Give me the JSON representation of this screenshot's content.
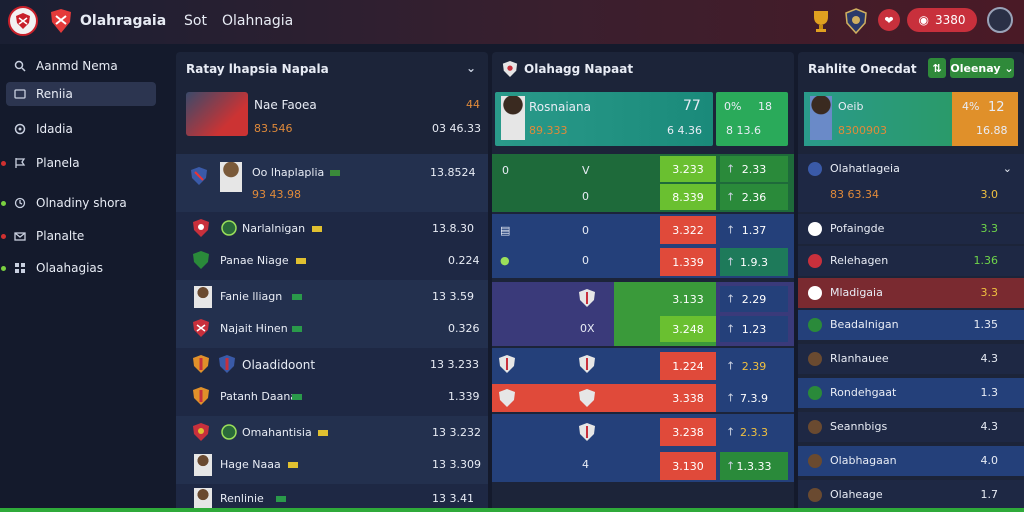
{
  "topbar": {
    "brand": "Olahragaia",
    "nav_a": "Sot",
    "nav_b": "Olahnagia",
    "balance": "3380",
    "balance_icon": "chip-icon",
    "colors": {
      "accent": "#c8303c",
      "top_gradient_end": "#4a1a26"
    }
  },
  "sidebar": {
    "items": [
      {
        "label": "Aanmd Nema",
        "icon": "search-icon"
      },
      {
        "label": "Reniia",
        "icon": "list-icon"
      },
      {
        "label": "Idadia",
        "icon": "circle-icon"
      },
      {
        "label": "Planela",
        "icon": "flag-icon"
      },
      {
        "label": "Olnadiny shora",
        "icon": "clock-icon"
      },
      {
        "label": "Planalte",
        "icon": "mail-icon"
      },
      {
        "label": "Olaahagias",
        "icon": "grid-icon"
      }
    ]
  },
  "panel1": {
    "title": "Ratay lhapsia Napala",
    "featured": {
      "name": "Nae Faoea",
      "odds": "83.546",
      "score": "44",
      "value": "03 46.33"
    },
    "rows": [
      {
        "name": "Oo lhaplaplia",
        "sub": "93 43.98",
        "value": "13.8524"
      },
      {
        "name": "Narlalnigan",
        "value": "13.8.30"
      },
      {
        "name": "Panae Niage",
        "value": "0.224"
      },
      {
        "name": "Fanie lliagn",
        "value": "13 3.59"
      },
      {
        "name": "Najait Hinen",
        "value": "0.326"
      },
      {
        "name": "Olaadidoont",
        "value": "13 3.233"
      },
      {
        "name": "Patanh Daana",
        "value": "1.339"
      },
      {
        "name": "Omahantisia",
        "value": "13 3.232"
      },
      {
        "name": "Hage Naaa",
        "value": "13 3.309"
      },
      {
        "name": "Renlinie",
        "value": "13 3.41"
      }
    ]
  },
  "panel2": {
    "title": "Olahagg Napaat",
    "featured": {
      "name": "Rosnaiana",
      "odds_a": "77",
      "odds_b": "0%",
      "odds_c": "18",
      "sub_a": "89.333",
      "sub_b": "6 4.36",
      "sub_c": "8 13.6"
    },
    "rows": [
      {
        "left": "0",
        "mid": "V",
        "odd1": "3.233",
        "odd2": "2.33"
      },
      {
        "left": "",
        "mid": "0",
        "odd1": "8.339",
        "odd2": "2.36"
      },
      {
        "left": "",
        "mid": "0",
        "odd1": "3.322",
        "odd2": "1.37"
      },
      {
        "left": "",
        "mid": "0",
        "odd1": "1.339",
        "odd2": "1.9.3"
      },
      {
        "left": "",
        "mid": "",
        "odd1": "3.133",
        "odd2": "2.29"
      },
      {
        "left": "",
        "mid": "0X",
        "odd1": "3.248",
        "odd2": "1.23"
      },
      {
        "left": "",
        "mid": "",
        "odd1": "1.224",
        "odd2": "2.39"
      },
      {
        "left": "",
        "mid": "",
        "odd1": "3.338",
        "odd2": "7.3.9"
      },
      {
        "left": "",
        "mid": "",
        "odd1": "3.238",
        "odd2": "2.3.3"
      },
      {
        "left": "",
        "mid": "4",
        "odd1": "3.130",
        "odd2": "1.3.33"
      }
    ]
  },
  "panel3": {
    "title": "Rahlite Onecdat",
    "btn": "Oleenay",
    "featured": {
      "name": "Oeib",
      "sub": "8300903",
      "odd_a": "4%",
      "odd_b": "12",
      "sub_b": "16.88"
    },
    "rows": [
      {
        "name": "Olahatlageia",
        "sub": "83 63.34",
        "val": "3.0"
      },
      {
        "name": "Pofaingde",
        "val": "3.3"
      },
      {
        "name": "Relehagen",
        "val": "1.36"
      },
      {
        "name": "Mladigaia",
        "val": "3.3"
      },
      {
        "name": "Beadalnigan",
        "val": "1.35"
      },
      {
        "name": "Rlanhauee",
        "val": "4.3"
      },
      {
        "name": "Rondehgaat",
        "val": "1.3"
      },
      {
        "name": "Seannbigs",
        "val": "4.3"
      },
      {
        "name": "Olabhagaan",
        "val": "4.0"
      },
      {
        "name": "Olaheage",
        "val": "1.7"
      }
    ]
  }
}
